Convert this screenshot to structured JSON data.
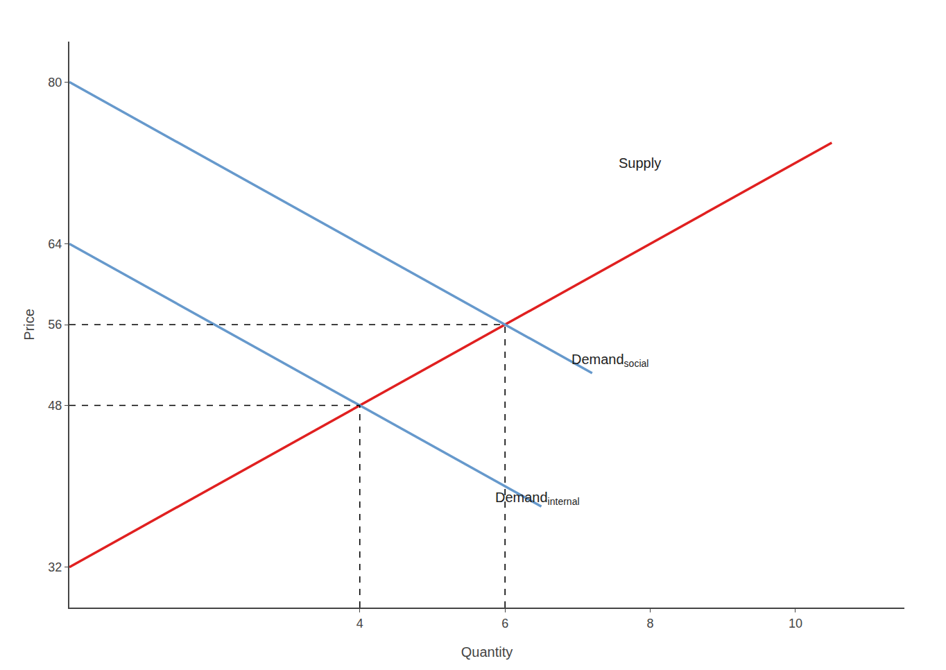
{
  "chart_data": {
    "type": "line",
    "xlabel": "Quantity",
    "ylabel": "Price",
    "xlim": [
      0,
      11.5
    ],
    "xticks": [
      4,
      6,
      8,
      10
    ],
    "ylim": [
      28,
      84
    ],
    "yticks": [
      32,
      48,
      56,
      64,
      80
    ],
    "grid": false,
    "series": [
      {
        "color": "#e02020",
        "line_style": "solid",
        "x": [
          0,
          10.5
        ],
        "values": [
          32,
          74
        ]
      },
      {
        "color": "#6699cc",
        "line_style": "solid",
        "x": [
          0,
          7.2
        ],
        "values": [
          80,
          51.2
        ]
      },
      {
        "color": "#6699cc",
        "line_style": "solid",
        "x": [
          0,
          6.5
        ],
        "values": [
          64,
          38
        ]
      },
      {
        "color": "#000000",
        "line_style": "dashed",
        "x": [
          0,
          4
        ],
        "values": [
          48,
          48
        ]
      },
      {
        "color": "#000000",
        "line_style": "dashed",
        "x": [
          4,
          4
        ],
        "values": [
          28,
          48
        ]
      },
      {
        "color": "#000000",
        "line_style": "dashed",
        "x": [
          0,
          6
        ],
        "values": [
          56,
          56
        ]
      },
      {
        "color": "#000000",
        "line_style": "dashed",
        "x": [
          6,
          6
        ],
        "values": [
          28,
          56
        ]
      }
    ],
    "annotations": [
      {
        "text": "Supply",
        "x": 7.55,
        "y": 72
      },
      {
        "text": "Demand",
        "subscript": "social",
        "x": 6.9,
        "y": 52.5
      },
      {
        "text": "Demand",
        "subscript": "internal",
        "x": 5.85,
        "y": 38.8
      }
    ]
  }
}
